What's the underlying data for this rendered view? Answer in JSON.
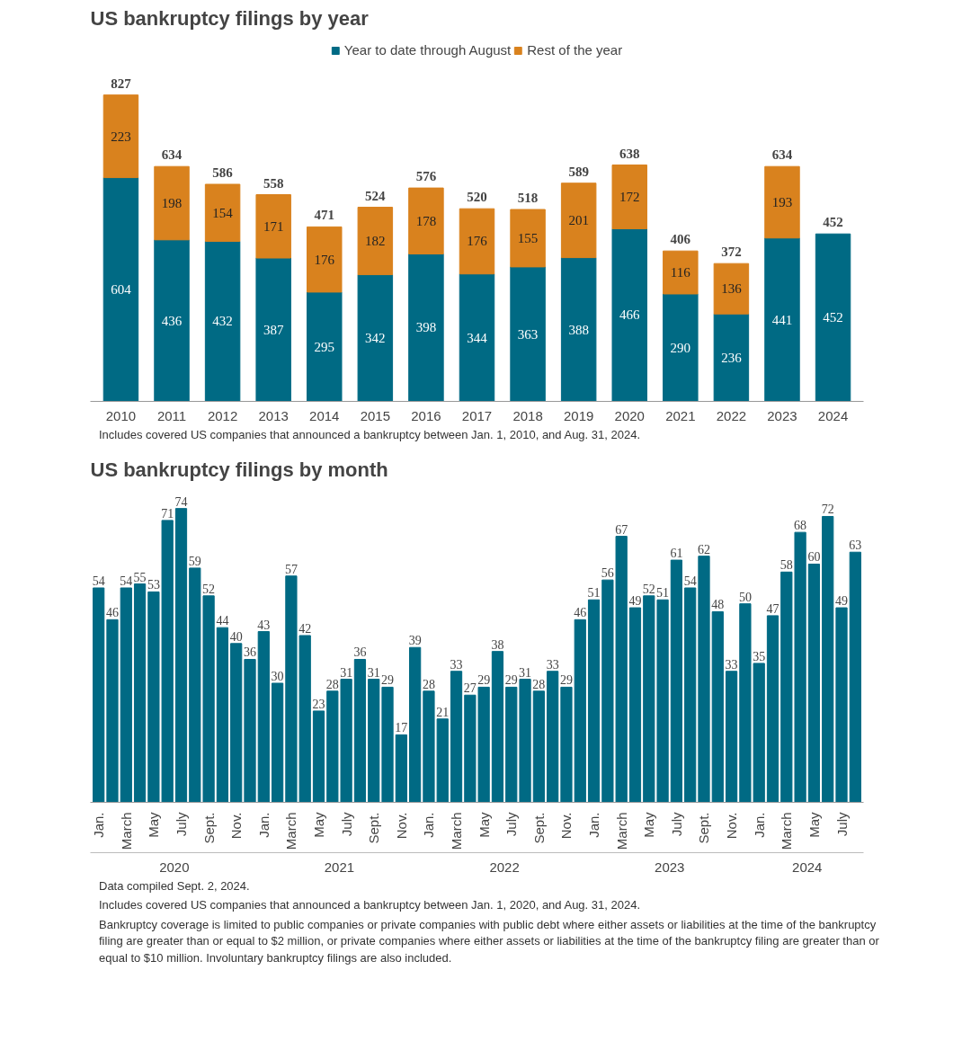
{
  "chart_data": [
    {
      "type": "bar",
      "title": "US bankruptcy filings by year",
      "stacked": true,
      "data_labels": true,
      "legend": "top",
      "grid": false,
      "categories": [
        "2010",
        "2011",
        "2012",
        "2013",
        "2014",
        "2015",
        "2016",
        "2017",
        "2018",
        "2019",
        "2020",
        "2021",
        "2022",
        "2023",
        "2024"
      ],
      "series": [
        {
          "name": "Year to date through August",
          "color": "#006a84",
          "values": [
            604,
            436,
            432,
            387,
            295,
            342,
            398,
            344,
            363,
            388,
            466,
            290,
            236,
            441,
            452
          ]
        },
        {
          "name": "Rest of the year",
          "color": "#d9821e",
          "values": [
            223,
            198,
            154,
            171,
            176,
            182,
            178,
            176,
            155,
            201,
            172,
            116,
            136,
            193,
            null
          ]
        }
      ],
      "totals": [
        "827",
        "634",
        "586",
        "558",
        "471",
        "524",
        "576",
        "520",
        "518",
        "589",
        "638",
        "406",
        "372",
        "634",
        "452"
      ],
      "annotations": [
        "Includes covered US companies that announced a bankruptcy between Jan. 1, 2010, and Aug. 31, 2024."
      ]
    },
    {
      "type": "bar",
      "title": "US bankruptcy filings by month",
      "data_labels": true,
      "grid": false,
      "color": "#006a84",
      "categories": [
        "Jan.",
        null,
        "March",
        null,
        "May",
        null,
        "July",
        null,
        "Sept.",
        null,
        "Nov.",
        null,
        "Jan.",
        null,
        "March",
        null,
        "May",
        null,
        "July",
        null,
        "Sept.",
        null,
        "Nov.",
        null,
        "Jan.",
        null,
        "March",
        null,
        "May",
        null,
        "July",
        null,
        "Sept.",
        null,
        "Nov.",
        null,
        "Jan.",
        null,
        "March",
        null,
        "May",
        null,
        "July",
        null,
        "Sept.",
        null,
        "Nov.",
        null,
        "Jan.",
        null,
        "March",
        null,
        "May",
        null,
        "July",
        null
      ],
      "values": [
        54,
        46,
        54,
        55,
        53,
        71,
        74,
        59,
        52,
        44,
        40,
        36,
        43,
        30,
        57,
        42,
        23,
        28,
        31,
        36,
        31,
        29,
        17,
        39,
        28,
        21,
        33,
        27,
        29,
        38,
        29,
        31,
        28,
        33,
        29,
        46,
        51,
        56,
        67,
        49,
        52,
        51,
        61,
        54,
        62,
        48,
        33,
        50,
        35,
        47,
        58,
        68,
        60,
        72,
        49,
        63
      ],
      "annotations": [
        "2020",
        "2021",
        "2022",
        "2023",
        "2024",
        "Data compiled Sept. 2, 2024.",
        "Includes covered US companies that announced a bankruptcy between Jan. 1, 2020, and Aug. 31, 2024.",
        "Bankruptcy coverage is limited to public companies or private companies with public debt where either assets or liabilities at the time of the bankruptcy filing are greater than or equal to $2 million, or private companies where either assets or liabilities at the time of the bankruptcy filing are greater than or equal to $10 million. Involuntary bankruptcy filings are also included."
      ]
    }
  ]
}
